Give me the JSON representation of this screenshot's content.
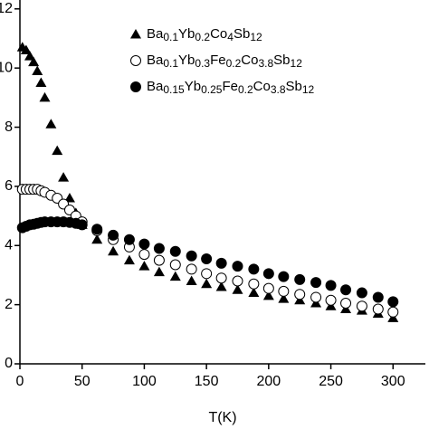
{
  "chart_data": {
    "type": "scatter",
    "xlabel": "T(K)",
    "xlim": [
      0,
      326
    ],
    "ylim": [
      0,
      12.3
    ],
    "xticks": [
      0,
      50,
      100,
      150,
      200,
      250,
      300
    ],
    "yticks": [
      0,
      2,
      4,
      6,
      8,
      10,
      12
    ],
    "legend": "top-center",
    "series": [
      {
        "name": "Ba0.1Yb0.2Co4Sb12",
        "color": "#000000",
        "marker": "triangle",
        "x": [
          2,
          5,
          8,
          11,
          14,
          17,
          20,
          25,
          30,
          35,
          40,
          45,
          50,
          62,
          75,
          88,
          100,
          112,
          125,
          138,
          150,
          162,
          175,
          188,
          200,
          212,
          225,
          238,
          250,
          262,
          275,
          288,
          300
        ],
        "values": [
          10.7,
          10.6,
          10.4,
          10.2,
          9.9,
          9.5,
          9.0,
          8.1,
          7.2,
          6.3,
          5.6,
          5.1,
          4.7,
          4.2,
          3.8,
          3.5,
          3.3,
          3.1,
          2.95,
          2.8,
          2.7,
          2.6,
          2.5,
          2.4,
          2.3,
          2.2,
          2.15,
          2.05,
          1.95,
          1.85,
          1.8,
          1.7,
          1.55
        ]
      },
      {
        "name": "Ba0.1Yb0.3Fe0.2Co3.8Sb12",
        "color": "#000000",
        "marker": "circle-open",
        "x": [
          2,
          5,
          8,
          11,
          14,
          17,
          20,
          25,
          30,
          35,
          40,
          45,
          50,
          62,
          75,
          88,
          100,
          112,
          125,
          138,
          150,
          162,
          175,
          188,
          200,
          212,
          225,
          238,
          250,
          262,
          275,
          288,
          300
        ],
        "values": [
          5.9,
          5.9,
          5.9,
          5.9,
          5.9,
          5.85,
          5.8,
          5.7,
          5.6,
          5.4,
          5.2,
          5.0,
          4.8,
          4.5,
          4.2,
          3.95,
          3.7,
          3.5,
          3.35,
          3.2,
          3.05,
          2.9,
          2.8,
          2.7,
          2.55,
          2.45,
          2.35,
          2.25,
          2.15,
          2.05,
          1.95,
          1.85,
          1.75
        ]
      },
      {
        "name": "Ba0.15Yb0.25Fe0.2Co3.8Sb12",
        "color": "#000000",
        "marker": "circle",
        "x": [
          2,
          5,
          8,
          11,
          14,
          17,
          20,
          25,
          30,
          35,
          40,
          45,
          50,
          62,
          75,
          88,
          100,
          112,
          125,
          138,
          150,
          162,
          175,
          188,
          200,
          212,
          225,
          238,
          250,
          262,
          275,
          288,
          300
        ],
        "values": [
          4.6,
          4.65,
          4.7,
          4.72,
          4.75,
          4.78,
          4.8,
          4.8,
          4.8,
          4.8,
          4.78,
          4.75,
          4.7,
          4.55,
          4.35,
          4.2,
          4.05,
          3.9,
          3.8,
          3.65,
          3.55,
          3.4,
          3.3,
          3.2,
          3.05,
          2.95,
          2.85,
          2.75,
          2.65,
          2.5,
          2.4,
          2.25,
          2.1
        ]
      }
    ]
  }
}
